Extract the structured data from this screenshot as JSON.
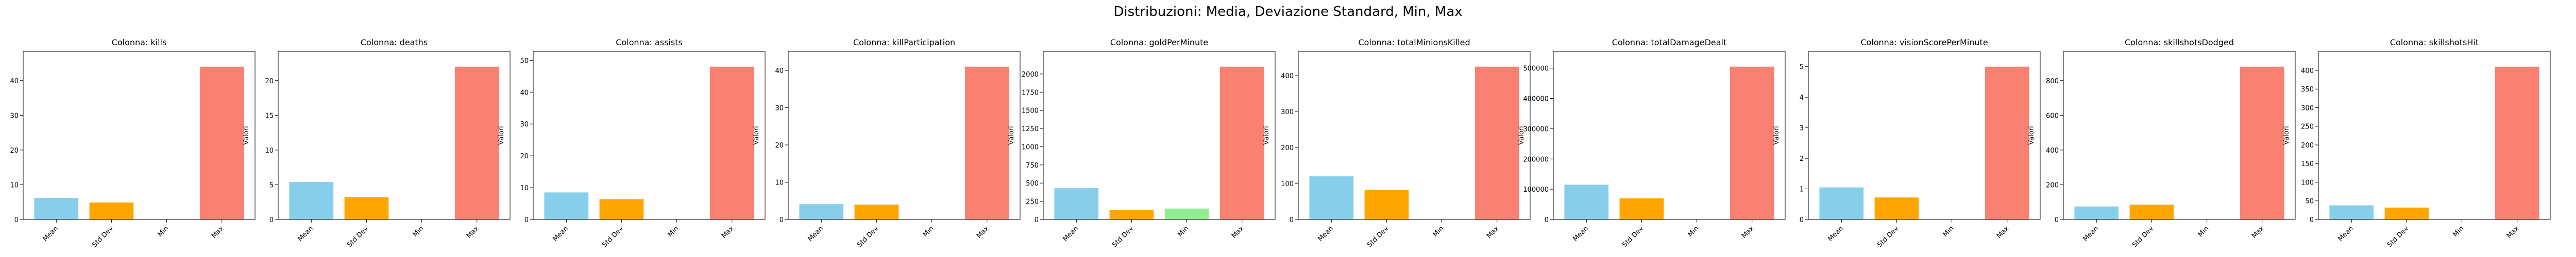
{
  "figure": {
    "suptitle": "Distribuzioni: Media, Deviazione Standard, Min, Max"
  },
  "colors": {
    "Mean": "#87ceeb",
    "Std Dev": "#ffa500",
    "Min": "#90ee90",
    "Max": "#fa8072"
  },
  "chart_data": [
    {
      "type": "bar",
      "title": "Colonna: kills",
      "ylabel": "Valori",
      "categories": [
        "Mean",
        "Std Dev",
        "Min",
        "Max"
      ],
      "values": [
        6.2,
        4.9,
        0,
        44
      ],
      "ylim": [
        0,
        48.4
      ],
      "yticks": [
        0,
        10,
        20,
        30,
        40
      ],
      "ytick_labels": [
        "0",
        "10",
        "20",
        "30",
        "40"
      ]
    },
    {
      "type": "bar",
      "title": "Colonna: deaths",
      "ylabel": "Valori",
      "categories": [
        "Mean",
        "Std Dev",
        "Min",
        "Max"
      ],
      "values": [
        5.4,
        3.2,
        0,
        22
      ],
      "ylim": [
        0,
        24.2
      ],
      "yticks": [
        0,
        5,
        10,
        15,
        20
      ],
      "ytick_labels": [
        "0",
        "5",
        "10",
        "15",
        "20"
      ]
    },
    {
      "type": "bar",
      "title": "Colonna: assists",
      "ylabel": "Valori",
      "categories": [
        "Mean",
        "Std Dev",
        "Min",
        "Max"
      ],
      "values": [
        8.5,
        6.4,
        0,
        48
      ],
      "ylim": [
        0,
        52.8
      ],
      "yticks": [
        0,
        10,
        20,
        30,
        40,
        50
      ],
      "ytick_labels": [
        "0",
        "10",
        "20",
        "30",
        "40",
        "50"
      ]
    },
    {
      "type": "bar",
      "title": "Colonna: killParticipation",
      "ylabel": "Valori",
      "categories": [
        "Mean",
        "Std Dev",
        "Min",
        "Max"
      ],
      "values": [
        4.1,
        4.0,
        0,
        41
      ],
      "ylim": [
        0,
        45.1
      ],
      "yticks": [
        0,
        10,
        20,
        30,
        40
      ],
      "ytick_labels": [
        "0",
        "10",
        "20",
        "30",
        "40"
      ]
    },
    {
      "type": "bar",
      "title": "Colonna: goldPerMinute",
      "ylabel": "Valori",
      "categories": [
        "Mean",
        "Std Dev",
        "Min",
        "Max"
      ],
      "values": [
        430,
        130,
        150,
        2100
      ],
      "ylim": [
        0,
        2310
      ],
      "yticks": [
        0,
        250,
        500,
        750,
        1000,
        1250,
        1500,
        1750,
        2000
      ],
      "ytick_labels": [
        "0",
        "250",
        "500",
        "750",
        "1000",
        "1250",
        "1500",
        "1750",
        "2000"
      ]
    },
    {
      "type": "bar",
      "title": "Colonna: totalMinionsKilled",
      "ylabel": "Valori",
      "categories": [
        "Mean",
        "Std Dev",
        "Min",
        "Max"
      ],
      "values": [
        120,
        82,
        0,
        425
      ],
      "ylim": [
        0,
        467.5
      ],
      "yticks": [
        0,
        100,
        200,
        300,
        400
      ],
      "ytick_labels": [
        "0",
        "100",
        "200",
        "300",
        "400"
      ]
    },
    {
      "type": "bar",
      "title": "Colonna: totalDamageDealt",
      "ylabel": "Valori",
      "categories": [
        "Mean",
        "Std Dev",
        "Min",
        "Max"
      ],
      "values": [
        115000,
        70000,
        0,
        505000
      ],
      "ylim": [
        0,
        555500
      ],
      "yticks": [
        0,
        100000,
        200000,
        300000,
        400000,
        500000
      ],
      "ytick_labels": [
        "0",
        "100000",
        "200000",
        "300000",
        "400000",
        "500000"
      ]
    },
    {
      "type": "bar",
      "title": "Colonna: visionScorePerMinute",
      "ylabel": "Valori",
      "categories": [
        "Mean",
        "Std Dev",
        "Min",
        "Max"
      ],
      "values": [
        1.05,
        0.72,
        0,
        5.0
      ],
      "ylim": [
        0,
        5.5
      ],
      "yticks": [
        0,
        1,
        2,
        3,
        4,
        5
      ],
      "ytick_labels": [
        "0",
        "1",
        "2",
        "3",
        "4",
        "5"
      ]
    },
    {
      "type": "bar",
      "title": "Colonna: skillshotsDodged",
      "ylabel": "Valori",
      "categories": [
        "Mean",
        "Std Dev",
        "Min",
        "Max"
      ],
      "values": [
        75,
        85,
        0,
        880
      ],
      "ylim": [
        0,
        968
      ],
      "yticks": [
        0,
        200,
        400,
        600,
        800
      ],
      "ytick_labels": [
        "0",
        "200",
        "400",
        "600",
        "800"
      ]
    },
    {
      "type": "bar",
      "title": "Colonna: skillshotsHit",
      "ylabel": "Valori",
      "categories": [
        "Mean",
        "Std Dev",
        "Min",
        "Max"
      ],
      "values": [
        38,
        32,
        0,
        410
      ],
      "ylim": [
        0,
        451
      ],
      "yticks": [
        0,
        50,
        100,
        150,
        200,
        250,
        300,
        350,
        400
      ],
      "ytick_labels": [
        "0",
        "50",
        "100",
        "150",
        "200",
        "250",
        "300",
        "350",
        "400"
      ]
    }
  ]
}
